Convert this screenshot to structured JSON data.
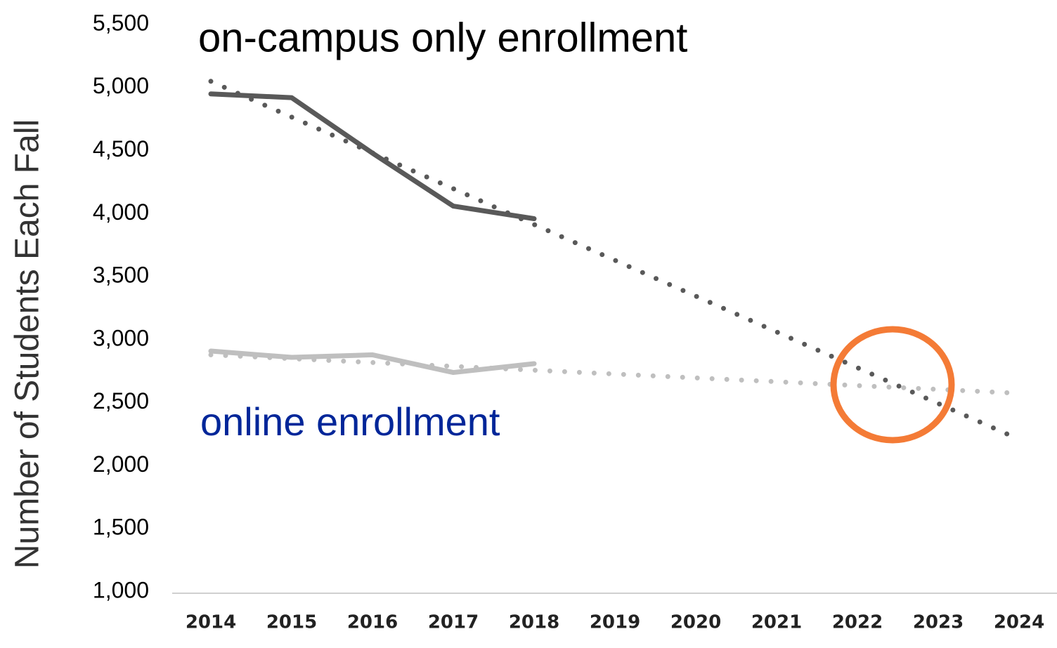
{
  "chart_data": {
    "type": "line",
    "ylabel": "Number of Students Each Fall",
    "categories": [
      "2014",
      "2015",
      "2016",
      "2017",
      "2018",
      "2019",
      "2020",
      "2021",
      "2022",
      "2023",
      "2024"
    ],
    "series": [
      {
        "name": "on-campus only enrollment",
        "color": "#595959",
        "style": "solid",
        "values": [
          4950,
          4920,
          4480,
          4060,
          3960,
          null,
          null,
          null,
          null,
          null,
          null
        ]
      },
      {
        "color": "#595959",
        "style": "dotted",
        "values": [
          5050,
          4766,
          4482,
          4198,
          3914,
          3630,
          3346,
          3062,
          2778,
          2494,
          2210
        ]
      },
      {
        "name": "online enrollment",
        "color": "#bfbfbf",
        "style": "solid",
        "values": [
          2910,
          2860,
          2880,
          2740,
          2810,
          null,
          null,
          null,
          null,
          null,
          null
        ]
      },
      {
        "color": "#bfbfbf",
        "style": "dotted",
        "values": [
          2880,
          2850,
          2819,
          2789,
          2758,
          2728,
          2697,
          2667,
          2636,
          2606,
          2575
        ]
      }
    ],
    "ylim": [
      1000,
      5500
    ],
    "yticks": [
      {
        "value": 1000,
        "label": "1,000"
      },
      {
        "value": 1500,
        "label": "1,500"
      },
      {
        "value": 2000,
        "label": "2,000"
      },
      {
        "value": 2500,
        "label": "2,500"
      },
      {
        "value": 3000,
        "label": "3,000"
      },
      {
        "value": 3500,
        "label": "3,500"
      },
      {
        "value": 4000,
        "label": "4,000"
      },
      {
        "value": 4500,
        "label": "4,500"
      },
      {
        "value": 5000,
        "label": "5,000"
      },
      {
        "value": 5500,
        "label": "5,500"
      }
    ],
    "grid": false
  }
}
